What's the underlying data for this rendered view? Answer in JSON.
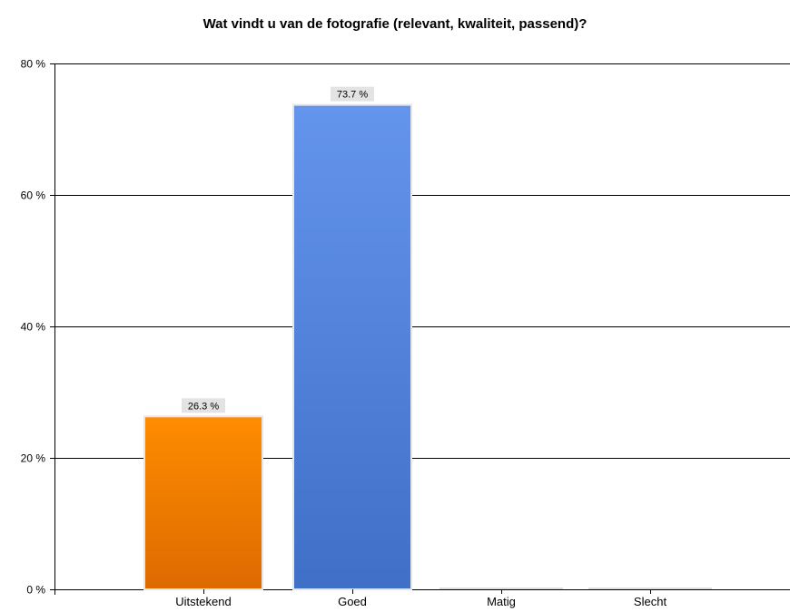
{
  "chart_data": {
    "type": "bar",
    "title": "Wat vindt u van de fotografie (relevant, kwaliteit, passend)?",
    "categories": [
      "Uitstekend",
      "Goed",
      "Matig",
      "Slecht"
    ],
    "values": [
      26.3,
      73.7,
      0,
      0
    ],
    "data_labels": [
      "26.3 %",
      "73.7 %",
      "",
      ""
    ],
    "bar_colors": [
      {
        "top": "#ff8c00",
        "bottom": "#dd6a00"
      },
      {
        "top": "#6495ed",
        "bottom": "#3f6fc6"
      },
      {
        "top": "#dddddd",
        "bottom": "#dddddd"
      },
      {
        "top": "#dddddd",
        "bottom": "#dddddd"
      }
    ],
    "ylim": [
      0,
      80
    ],
    "yticks": [
      0,
      20,
      40,
      60,
      80
    ],
    "ytick_labels": [
      "0 %",
      "20 %",
      "40 %",
      "60 %",
      "80 %"
    ],
    "grid": true,
    "legend": "none"
  }
}
